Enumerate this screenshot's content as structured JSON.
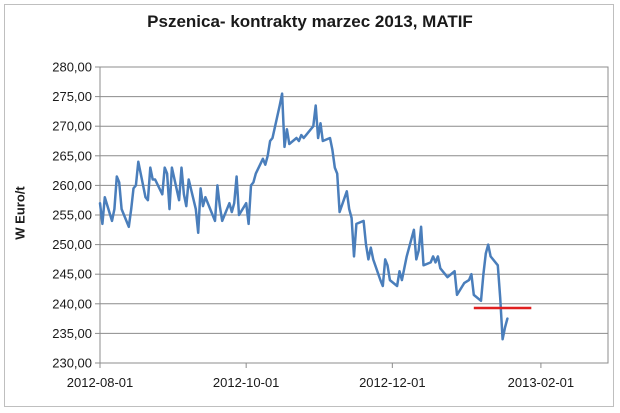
{
  "chart_data": {
    "type": "line",
    "title": "Pszenica- kontrakty marzec 2013, MATIF",
    "ylabel": "W Euro/t",
    "xlabel": "",
    "ylim": [
      230,
      280
    ],
    "y_ticks": [
      "230,00",
      "235,00",
      "240,00",
      "245,00",
      "250,00",
      "255,00",
      "260,00",
      "265,00",
      "270,00",
      "275,00",
      "280,00"
    ],
    "x_range": [
      "2012-08-01",
      "2013-03-01"
    ],
    "x_ticks": [
      {
        "date": "2012-08-01",
        "label": "2012-08-01"
      },
      {
        "date": "2012-10-01",
        "label": "2012-10-01"
      },
      {
        "date": "2012-12-01",
        "label": "2012-12-01"
      },
      {
        "date": "2013-02-01",
        "label": "2013-02-01"
      }
    ],
    "grid": "horizontal",
    "series": [
      {
        "color": "#4a7ebb",
        "points": [
          [
            "2012-08-01",
            257.0
          ],
          [
            "2012-08-02",
            253.5
          ],
          [
            "2012-08-03",
            258.0
          ],
          [
            "2012-08-06",
            254.0
          ],
          [
            "2012-08-07",
            256.0
          ],
          [
            "2012-08-08",
            261.5
          ],
          [
            "2012-08-09",
            260.5
          ],
          [
            "2012-08-10",
            256.0
          ],
          [
            "2012-08-13",
            253.0
          ],
          [
            "2012-08-14",
            256.0
          ],
          [
            "2012-08-15",
            259.5
          ],
          [
            "2012-08-16",
            260.0
          ],
          [
            "2012-08-17",
            264.0
          ],
          [
            "2012-08-20",
            258.0
          ],
          [
            "2012-08-21",
            257.5
          ],
          [
            "2012-08-22",
            263.0
          ],
          [
            "2012-08-23",
            261.0
          ],
          [
            "2012-08-24",
            261.0
          ],
          [
            "2012-08-27",
            258.5
          ],
          [
            "2012-08-28",
            263.0
          ],
          [
            "2012-08-29",
            262.0
          ],
          [
            "2012-08-30",
            256.0
          ],
          [
            "2012-08-31",
            263.0
          ],
          [
            "2012-09-03",
            257.5
          ],
          [
            "2012-09-04",
            263.0
          ],
          [
            "2012-09-05",
            258.5
          ],
          [
            "2012-09-06",
            256.5
          ],
          [
            "2012-09-07",
            261.0
          ],
          [
            "2012-09-10",
            256.0
          ],
          [
            "2012-09-11",
            252.0
          ],
          [
            "2012-09-12",
            259.5
          ],
          [
            "2012-09-13",
            256.5
          ],
          [
            "2012-09-14",
            258.0
          ],
          [
            "2012-09-17",
            255.0
          ],
          [
            "2012-09-18",
            254.0
          ],
          [
            "2012-09-19",
            260.0
          ],
          [
            "2012-09-20",
            256.5
          ],
          [
            "2012-09-21",
            254.0
          ],
          [
            "2012-09-24",
            257.0
          ],
          [
            "2012-09-25",
            255.5
          ],
          [
            "2012-09-26",
            257.0
          ],
          [
            "2012-09-27",
            261.5
          ],
          [
            "2012-09-28",
            255.0
          ],
          [
            "2012-10-01",
            257.0
          ],
          [
            "2012-10-02",
            253.5
          ],
          [
            "2012-10-03",
            260.0
          ],
          [
            "2012-10-04",
            260.5
          ],
          [
            "2012-10-05",
            262.0
          ],
          [
            "2012-10-08",
            264.5
          ],
          [
            "2012-10-09",
            263.5
          ],
          [
            "2012-10-10",
            265.0
          ],
          [
            "2012-10-11",
            267.5
          ],
          [
            "2012-10-12",
            268.0
          ],
          [
            "2012-10-15",
            273.5
          ],
          [
            "2012-10-16",
            275.5
          ],
          [
            "2012-10-17",
            266.5
          ],
          [
            "2012-10-18",
            269.5
          ],
          [
            "2012-10-19",
            267.0
          ],
          [
            "2012-10-22",
            268.0
          ],
          [
            "2012-10-23",
            267.5
          ],
          [
            "2012-10-24",
            268.5
          ],
          [
            "2012-10-25",
            268.0
          ],
          [
            "2012-10-26",
            268.5
          ],
          [
            "2012-10-29",
            270.0
          ],
          [
            "2012-10-30",
            273.5
          ],
          [
            "2012-10-31",
            268.0
          ],
          [
            "2012-11-01",
            270.5
          ],
          [
            "2012-11-02",
            267.5
          ],
          [
            "2012-11-05",
            268.0
          ],
          [
            "2012-11-06",
            266.0
          ],
          [
            "2012-11-07",
            263.0
          ],
          [
            "2012-11-08",
            262.0
          ],
          [
            "2012-11-09",
            255.5
          ],
          [
            "2012-11-12",
            259.0
          ],
          [
            "2012-11-13",
            256.0
          ],
          [
            "2012-11-14",
            254.5
          ],
          [
            "2012-11-15",
            248.0
          ],
          [
            "2012-11-16",
            253.5
          ],
          [
            "2012-11-19",
            254.0
          ],
          [
            "2012-11-20",
            250.0
          ],
          [
            "2012-11-21",
            247.5
          ],
          [
            "2012-11-22",
            249.5
          ],
          [
            "2012-11-23",
            247.5
          ],
          [
            "2012-11-26",
            244.0
          ],
          [
            "2012-11-27",
            243.0
          ],
          [
            "2012-11-28",
            247.5
          ],
          [
            "2012-11-29",
            246.5
          ],
          [
            "2012-11-30",
            244.0
          ],
          [
            "2012-12-03",
            243.0
          ],
          [
            "2012-12-04",
            245.5
          ],
          [
            "2012-12-05",
            244.0
          ],
          [
            "2012-12-06",
            246.0
          ],
          [
            "2012-12-07",
            248.0
          ],
          [
            "2012-12-10",
            252.5
          ],
          [
            "2012-12-11",
            247.5
          ],
          [
            "2012-12-12",
            249.0
          ],
          [
            "2012-12-13",
            253.0
          ],
          [
            "2012-12-14",
            246.5
          ],
          [
            "2012-12-17",
            247.0
          ],
          [
            "2012-12-18",
            248.0
          ],
          [
            "2012-12-19",
            247.0
          ],
          [
            "2012-12-20",
            248.0
          ],
          [
            "2012-12-21",
            246.0
          ],
          [
            "2012-12-24",
            244.5
          ],
          [
            "2012-12-27",
            245.5
          ],
          [
            "2012-12-28",
            241.5
          ],
          [
            "2012-12-31",
            243.5
          ],
          [
            "2013-01-02",
            244.0
          ],
          [
            "2013-01-03",
            245.0
          ],
          [
            "2013-01-04",
            241.5
          ],
          [
            "2013-01-07",
            240.5
          ],
          [
            "2013-01-08",
            245.0
          ],
          [
            "2013-01-09",
            248.5
          ],
          [
            "2013-01-10",
            250.0
          ],
          [
            "2013-01-11",
            248.0
          ],
          [
            "2013-01-14",
            246.5
          ],
          [
            "2013-01-15",
            241.0
          ],
          [
            "2013-01-16",
            234.0
          ],
          [
            "2013-01-17",
            236.0
          ],
          [
            "2013-01-18",
            237.5
          ]
        ]
      }
    ],
    "annotations": [
      {
        "type": "hline",
        "y": 239.3,
        "x_start": "2013-01-04",
        "x_end": "2013-01-28",
        "color": "#e02020"
      }
    ]
  }
}
